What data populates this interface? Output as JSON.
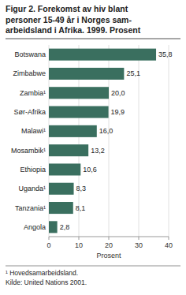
{
  "chart_data": {
    "type": "bar",
    "orientation": "horizontal",
    "title": "Figur 2. Forekomst av hiv blant\npersoner 15-49 år i Norges sam-\narbeidsland i Afrika. 1999. Prosent",
    "categories": [
      "Botswana",
      "Zimbabwe",
      "Zambia¹",
      "Sør-Afrika",
      "Malawi¹",
      "Mosambik¹",
      "Ethiopia",
      "Uganda¹",
      "Tanzania¹",
      "Angola"
    ],
    "values": [
      35.8,
      25.1,
      20.0,
      19.9,
      16.0,
      13.2,
      10.6,
      8.3,
      8.1,
      2.8
    ],
    "value_labels": [
      "35,8",
      "25,1",
      "20,0",
      "19,9",
      "16,0",
      "13,2",
      "10,6",
      "8,3",
      "8,1",
      "2,8"
    ],
    "data_labels": true,
    "color": "#3a6f5f",
    "xlabel": "Prosent",
    "xlim": [
      0,
      40
    ],
    "xticks": [
      0,
      10,
      20,
      30,
      40
    ],
    "grid": true,
    "annotations": [
      "¹ Hovedsamarbeidsland.",
      "Kilde: United Nations 2001."
    ]
  }
}
